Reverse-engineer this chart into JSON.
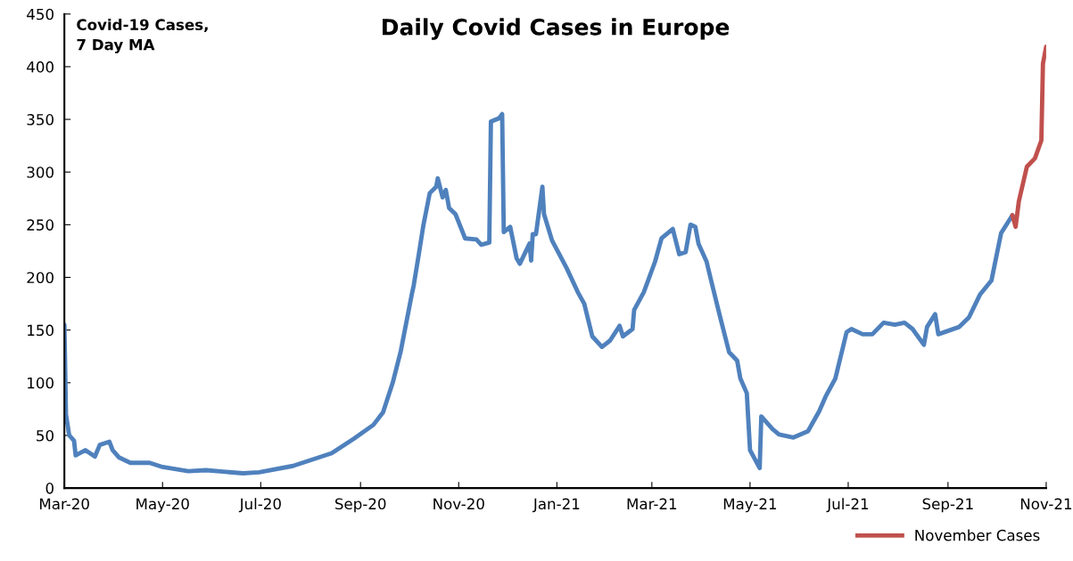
{
  "chart_data": {
    "type": "line",
    "title": "Daily Covid Cases in Europe",
    "ylabel": "Covid-19 Cases,\n7 Day MA",
    "xlim": [
      "2020-03-01",
      "2021-11-01"
    ],
    "xticks": [
      {
        "value": "2020-03-01",
        "label": "Mar-20"
      },
      {
        "value": "2020-05-01",
        "label": "May-20"
      },
      {
        "value": "2020-07-01",
        "label": "Jul-20"
      },
      {
        "value": "2020-09-01",
        "label": "Sep-20"
      },
      {
        "value": "2020-11-01",
        "label": "Nov-20"
      },
      {
        "value": "2021-01-01",
        "label": "Jan-21"
      },
      {
        "value": "2021-03-01",
        "label": "Mar-21"
      },
      {
        "value": "2021-05-01",
        "label": "May-21"
      },
      {
        "value": "2021-07-01",
        "label": "Jul-21"
      },
      {
        "value": "2021-09-01",
        "label": "Sep-21"
      },
      {
        "value": "2021-11-01",
        "label": "Nov-21"
      }
    ],
    "ylim": [
      0,
      450
    ],
    "yticks": [
      0,
      50,
      100,
      150,
      200,
      250,
      300,
      350,
      400,
      450
    ],
    "grid": false,
    "legend": "bottom right",
    "marker": "none",
    "line_style": "solid",
    "series": [
      {
        "color": "#4f81bd",
        "x": [
          "2020-03-01",
          "2020-03-02",
          "2020-03-04",
          "2020-03-07",
          "2020-03-08",
          "2020-03-14",
          "2020-03-20",
          "2020-03-23",
          "2020-03-29",
          "2020-03-31",
          "2020-04-04",
          "2020-04-11",
          "2020-04-23",
          "2020-05-01",
          "2020-05-17",
          "2020-05-28",
          "2020-06-20",
          "2020-06-30",
          "2020-07-21",
          "2020-08-14",
          "2020-08-28",
          "2020-09-09",
          "2020-09-15",
          "2020-09-21",
          "2020-09-26",
          "2020-10-03",
          "2020-10-04",
          "2020-10-07",
          "2020-10-10",
          "2020-10-14",
          "2020-10-18",
          "2020-10-19",
          "2020-10-22",
          "2020-10-24",
          "2020-10-26",
          "2020-10-30",
          "2020-11-05",
          "2020-11-12",
          "2020-11-15",
          "2020-11-20",
          "2020-11-21",
          "2020-11-26",
          "2020-11-28",
          "2020-11-29",
          "2020-12-03",
          "2020-12-07",
          "2020-12-09",
          "2020-12-15",
          "2020-12-16",
          "2020-12-17",
          "2020-12-19",
          "2020-12-23",
          "2020-12-24",
          "2020-12-29",
          "2021-01-07",
          "2021-01-14",
          "2021-01-18",
          "2021-01-23",
          "2021-01-29",
          "2021-02-03",
          "2021-02-09",
          "2021-02-11",
          "2021-02-17",
          "2021-02-18",
          "2021-02-24",
          "2021-03-03",
          "2021-03-07",
          "2021-03-14",
          "2021-03-18",
          "2021-03-22",
          "2021-03-25",
          "2021-03-28",
          "2021-03-30",
          "2021-04-04",
          "2021-04-07",
          "2021-04-12",
          "2021-04-18",
          "2021-04-23",
          "2021-04-25",
          "2021-04-29",
          "2021-05-01",
          "2021-05-07",
          "2021-05-08",
          "2021-05-15",
          "2021-05-19",
          "2021-05-28",
          "2021-06-06",
          "2021-06-13",
          "2021-06-17",
          "2021-06-23",
          "2021-06-30",
          "2021-07-03",
          "2021-07-10",
          "2021-07-16",
          "2021-07-23",
          "2021-07-30",
          "2021-08-05",
          "2021-08-10",
          "2021-08-17",
          "2021-08-19",
          "2021-08-24",
          "2021-08-26",
          "2021-09-08",
          "2021-09-14",
          "2021-09-21",
          "2021-09-28",
          "2021-10-04",
          "2021-10-11"
        ],
        "values": [
          155,
          70,
          50,
          45,
          31,
          36,
          30,
          41,
          44,
          36,
          29,
          24,
          24,
          20,
          16,
          17,
          14,
          15,
          21,
          33,
          47,
          60,
          72,
          100,
          130,
          185,
          192,
          220,
          249,
          280,
          286,
          294,
          276,
          283,
          266,
          260,
          237,
          236,
          231,
          233,
          348,
          351,
          355,
          243,
          248,
          218,
          213,
          232,
          216,
          241,
          241,
          286,
          260,
          235,
          209,
          186,
          175,
          144,
          134,
          140,
          154,
          144,
          151,
          169,
          186,
          215,
          237,
          246,
          222,
          224,
          250,
          248,
          232,
          215,
          196,
          165,
          129,
          121,
          104,
          90,
          36,
          19,
          68,
          56,
          51,
          48,
          54,
          73,
          87,
          104,
          148,
          151,
          146,
          146,
          157,
          155,
          157,
          151,
          136,
          153,
          165,
          146,
          153,
          162,
          184,
          197,
          242,
          259
        ]
      },
      {
        "name": "November Cases",
        "color": "#c0504d",
        "x": [
          "2021-10-11",
          "2021-10-13",
          "2021-10-15",
          "2021-10-20",
          "2021-10-25",
          "2021-10-29",
          "2021-10-30",
          "2021-11-01"
        ],
        "values": [
          259,
          248,
          272,
          305,
          313,
          330,
          403,
          419
        ]
      }
    ]
  }
}
